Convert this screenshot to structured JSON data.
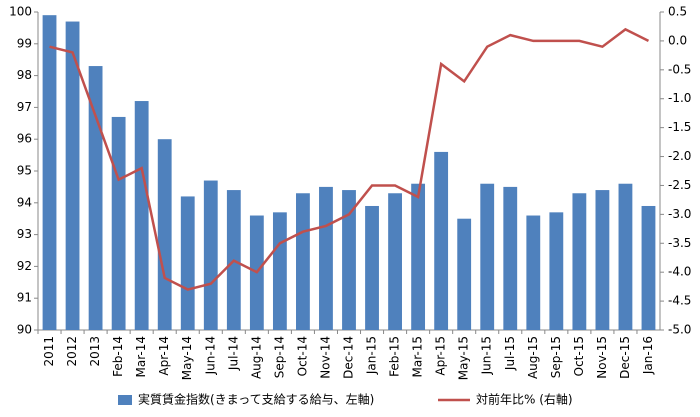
{
  "chart_data": {
    "type": "bar-line",
    "categories": [
      "2011",
      "2012",
      "2013",
      "Feb-14",
      "Mar-14",
      "Apr-14",
      "May-14",
      "Jun-14",
      "Jul-14",
      "Aug-14",
      "Sep-14",
      "Oct-14",
      "Nov-14",
      "Dec-14",
      "Jan-15",
      "Feb-15",
      "Mar-15",
      "Apr-15",
      "May-15",
      "Jun-15",
      "Jul-15",
      "Aug-15",
      "Sep-15",
      "Oct-15",
      "Nov-15",
      "Dec-15",
      "Jan-16"
    ],
    "series": [
      {
        "name": "実質賃金指数(きまって支給する給与、左軸)",
        "type": "bar",
        "color": "#4f81bd",
        "values": [
          99.9,
          99.7,
          98.3,
          96.7,
          97.2,
          96.0,
          94.2,
          94.7,
          94.4,
          93.6,
          93.7,
          94.3,
          94.5,
          94.4,
          93.9,
          94.3,
          94.6,
          95.6,
          93.5,
          94.6,
          94.5,
          93.6,
          93.7,
          94.3,
          94.4,
          94.6,
          93.9
        ]
      },
      {
        "name": "対前年比% (右軸)",
        "type": "line",
        "axis": "y2",
        "color": "#c0504d",
        "values": [
          -0.1,
          -0.2,
          -1.3,
          -2.4,
          -2.2,
          -4.1,
          -4.3,
          -4.2,
          -3.8,
          -4.0,
          -3.5,
          -3.3,
          -3.2,
          -3.0,
          -2.5,
          -2.5,
          -2.7,
          -0.4,
          -0.7,
          -0.1,
          0.1,
          0.0,
          0.0,
          0.0,
          -0.1,
          0.2,
          0.0
        ]
      }
    ],
    "ylim": [
      90,
      100
    ],
    "yticks": [
      90,
      91,
      92,
      93,
      94,
      95,
      96,
      97,
      98,
      99,
      100
    ],
    "y2lim": [
      -5,
      0.5
    ],
    "y2ticks": [
      0.5,
      {
        "value": 0,
        "label": "0.0"
      },
      -0.5,
      {
        "value": -1,
        "label": "-1.0"
      },
      -1.5,
      {
        "value": -2,
        "label": "-2.0"
      },
      -2.5,
      {
        "value": -3,
        "label": "-3.0"
      },
      -3.5,
      {
        "value": -4,
        "label": "-4.0"
      },
      -4.5,
      {
        "value": -5,
        "label": "-5.0"
      }
    ],
    "grid": false,
    "legend": "bottom"
  }
}
